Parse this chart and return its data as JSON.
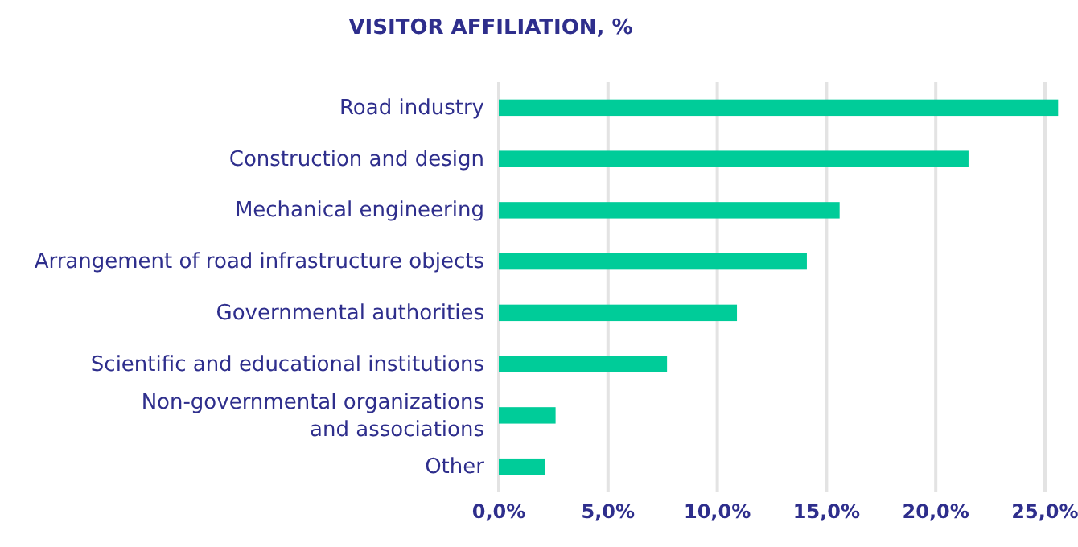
{
  "chart_data": {
    "type": "bar",
    "orientation": "horizontal",
    "title": "VISITOR AFFILIATION, %",
    "categories": [
      "Road industry",
      "Construction and design",
      "Mechanical engineering",
      "Arrangement of road infrastructure objects",
      "Governmental authorities",
      "Scientific and educational institutions",
      "Non-governmental organizations and associations",
      "Other"
    ],
    "values": [
      25.6,
      21.5,
      15.6,
      14.1,
      10.9,
      7.7,
      2.6,
      2.1
    ],
    "color": "#00cc99",
    "xlim": [
      0,
      25.7
    ],
    "xticks": [
      {
        "value": 0,
        "label": "0,0%"
      },
      {
        "value": 5,
        "label": "5,0%"
      },
      {
        "value": 10,
        "label": "10,0%"
      },
      {
        "value": 15,
        "label": "15,0%"
      },
      {
        "value": 20,
        "label": "20,0%"
      },
      {
        "value": 25,
        "label": "25,0%"
      }
    ],
    "grid": "x"
  }
}
